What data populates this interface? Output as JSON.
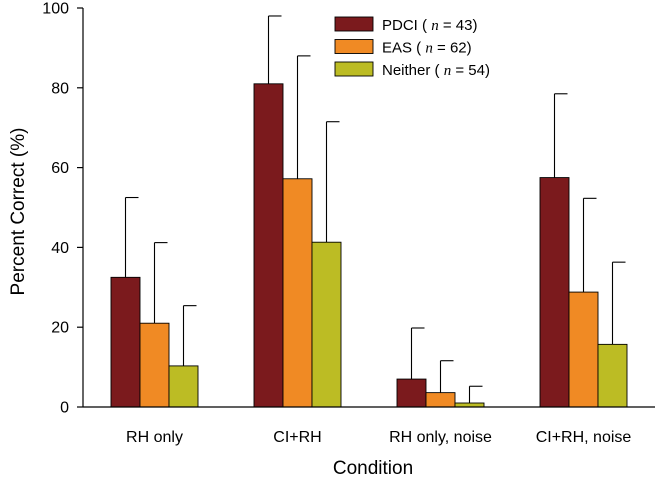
{
  "chart_data": {
    "type": "bar",
    "title": "",
    "xlabel": "Condition",
    "ylabel": "Percent Correct  (%)",
    "ylim": [
      0,
      100
    ],
    "yticks": [
      "0",
      "20",
      "40",
      "60",
      "80",
      "100"
    ],
    "categories": [
      "RH only",
      "CI+RH",
      "RH only, noise",
      "CI+RH, noise"
    ],
    "error_bars": "upper standard deviation",
    "grid": false,
    "legend_position": "top-right",
    "series": [
      {
        "name": "PDCI",
        "n_label": "n",
        "n_value": "= 43",
        "color": "#7b1a1d",
        "values": [
          32.5,
          81,
          7,
          57.5
        ],
        "errors": [
          20,
          17,
          12.8,
          21
        ]
      },
      {
        "name": "EAS",
        "n_label": "n",
        "n_value": "= 62",
        "color": "#f08a24",
        "values": [
          21,
          57.2,
          3.6,
          28.8
        ],
        "errors": [
          20.2,
          30.8,
          8,
          23.5
        ]
      },
      {
        "name": "Neither",
        "n_label": "n",
        "n_value": "= 54",
        "color": "#bcbc24",
        "values": [
          10.3,
          41.3,
          1,
          15.7
        ],
        "errors": [
          15.1,
          30.2,
          4.2,
          20.6
        ]
      }
    ]
  }
}
